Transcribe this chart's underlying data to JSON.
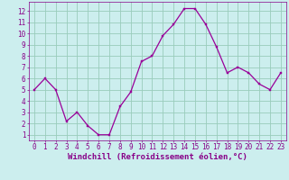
{
  "x": [
    0,
    1,
    2,
    3,
    4,
    5,
    6,
    7,
    8,
    9,
    10,
    11,
    12,
    13,
    14,
    15,
    16,
    17,
    18,
    19,
    20,
    21,
    22,
    23
  ],
  "y": [
    5.0,
    6.0,
    5.0,
    2.2,
    3.0,
    1.8,
    1.0,
    1.0,
    3.5,
    4.8,
    7.5,
    8.0,
    9.8,
    10.8,
    12.2,
    12.2,
    10.8,
    8.8,
    6.5,
    7.0,
    6.5,
    5.5,
    5.0,
    6.5
  ],
  "line_color": "#990099",
  "marker_color": "#990099",
  "bg_color": "#cceeee",
  "grid_color": "#99ccbb",
  "xlabel": "Windchill (Refroidissement éolien,°C)",
  "xlim": [
    -0.5,
    23.5
  ],
  "ylim": [
    0.5,
    12.8
  ],
  "xticks": [
    0,
    1,
    2,
    3,
    4,
    5,
    6,
    7,
    8,
    9,
    10,
    11,
    12,
    13,
    14,
    15,
    16,
    17,
    18,
    19,
    20,
    21,
    22,
    23
  ],
  "yticks": [
    1,
    2,
    3,
    4,
    5,
    6,
    7,
    8,
    9,
    10,
    11,
    12
  ],
  "font_color": "#880088",
  "tick_fontsize": 5.5,
  "label_fontsize": 6.5
}
